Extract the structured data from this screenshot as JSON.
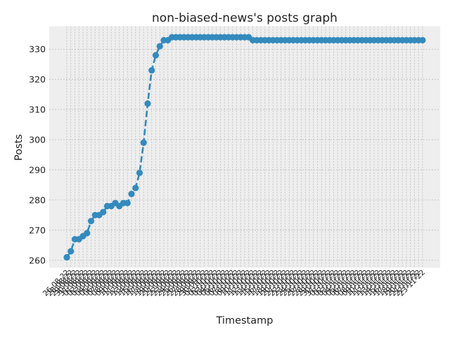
{
  "chart_data": {
    "type": "line",
    "title": "non-biased-news's posts graph",
    "xlabel": "Timestamp",
    "ylabel": "Posts",
    "ylim": [
      257.5,
      337.6
    ],
    "yticks": [
      260,
      270,
      280,
      290,
      300,
      310,
      320,
      330
    ],
    "grid": true,
    "line_style": "dashed",
    "marker": "circle",
    "colors": {
      "series": "#348ABD",
      "plot_bg": "#EEEEEE",
      "grid": "#BBBBBB"
    },
    "x_tick_labels": [
      "26-08-22",
      "28-08-22",
      "29-08-22",
      "30-08-22",
      "31-08-22",
      "01-09-22",
      "02-09-22",
      "03-09-22",
      "04-09-22",
      "05-09-22",
      "06-09-22",
      "07-09-22",
      "08-09-22",
      "09-09-22",
      "10-09-22",
      "11-09-22",
      "12-09-22",
      "13-09-22",
      "14-09-22",
      "15-09-22",
      "16-09-22",
      "17-09-22",
      "18-09-22",
      "19-09-22",
      "20-09-22",
      "21-09-22",
      "22-09-22",
      "23-09-22",
      "24-09-22",
      "25-09-22",
      "26-09-22",
      "27-09-22",
      "28-09-22",
      "29-09-22",
      "30-09-22",
      "01-10-22",
      "02-10-22",
      "03-10-22",
      "04-10-22",
      "05-10-22",
      "06-10-22",
      "07-10-22",
      "08-10-22",
      "09-10-22",
      "10-10-22",
      "11-10-22",
      "12-10-22",
      "13-10-22",
      "14-10-22",
      "15-10-22",
      "16-10-22",
      "17-10-22",
      "18-10-22",
      "19-10-22",
      "20-10-22",
      "21-10-22",
      "22-10-22",
      "23-10-22",
      "24-10-22",
      "25-10-22",
      "26-10-22",
      "27-10-22",
      "28-10-22",
      "29-10-22",
      "30-10-22",
      "31-10-22",
      "01-11-22",
      "02-11-22",
      "03-11-22",
      "04-11-22",
      "05-11-22",
      "06-11-22",
      "07-11-22",
      "08-11-22",
      "09-11-22",
      "10-11-22",
      "11-11-22",
      "12-11-22",
      "13-11-22",
      "14-11-22",
      "15-11-22",
      "16-11-22",
      "17-11-22",
      "18-11-22",
      "19-11-22",
      "20-11-22",
      "21-11-22",
      "22-11-22",
      "23-11-22"
    ],
    "values": [
      261,
      263,
      267,
      267,
      268,
      269,
      273,
      275,
      275,
      276,
      278,
      278,
      279,
      278,
      279,
      279,
      282,
      284,
      289,
      299,
      312,
      323,
      328,
      331,
      333,
      333,
      334,
      334,
      334,
      334,
      334,
      334,
      334,
      334,
      334,
      334,
      334,
      334,
      334,
      334,
      334,
      334,
      334,
      334,
      334,
      334,
      333,
      333,
      333,
      333,
      333,
      333,
      333,
      333,
      333,
      333,
      333,
      333,
      333,
      333,
      333,
      333,
      333,
      333,
      333,
      333,
      333,
      333,
      333,
      333,
      333,
      333,
      333,
      333,
      333,
      333,
      333,
      333,
      333,
      333,
      333,
      333,
      333,
      333,
      333,
      333,
      333,
      333,
      333
    ]
  }
}
